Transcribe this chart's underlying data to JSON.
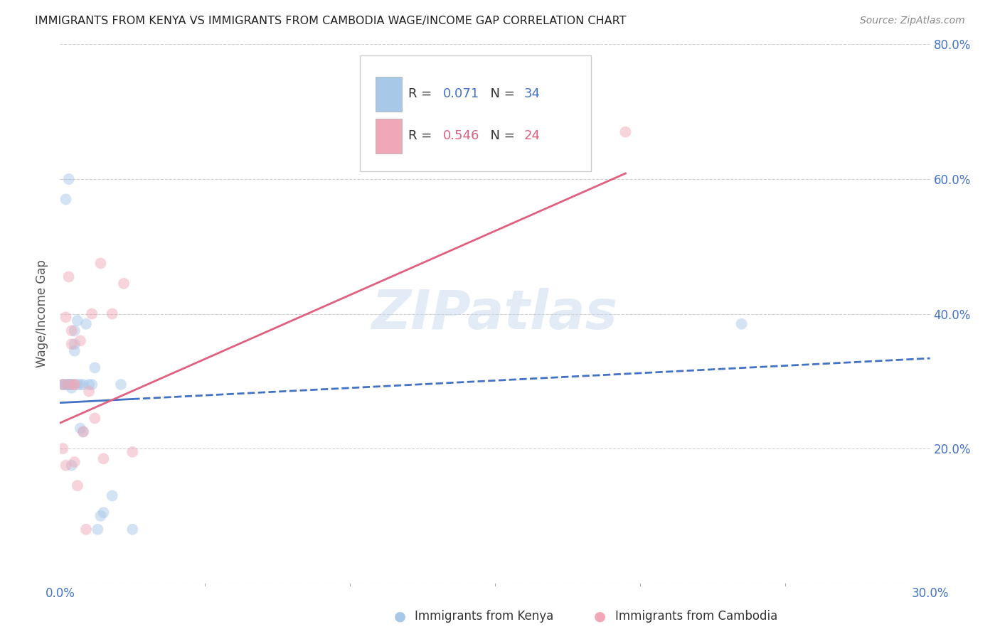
{
  "title": "IMMIGRANTS FROM KENYA VS IMMIGRANTS FROM CAMBODIA WAGE/INCOME GAP CORRELATION CHART",
  "source": "Source: ZipAtlas.com",
  "ylabel": "Wage/Income Gap",
  "xlim": [
    0.0,
    0.3
  ],
  "ylim": [
    0.0,
    0.8
  ],
  "xticks": [
    0.0,
    0.05,
    0.1,
    0.15,
    0.2,
    0.25,
    0.3
  ],
  "xticklabels": [
    "0.0%",
    "",
    "",
    "",
    "",
    "",
    "30.0%"
  ],
  "yticks": [
    0.0,
    0.2,
    0.4,
    0.6,
    0.8
  ],
  "right_yticklabels": [
    "",
    "20.0%",
    "40.0%",
    "60.0%",
    "80.0%"
  ],
  "background_color": "#ffffff",
  "grid_color": "#d0d0d0",
  "watermark": "ZIPatlas",
  "legend_R1": "R = 0.071",
  "legend_N1": "N = 34",
  "legend_R2": "R = 0.546",
  "legend_N2": "N = 24",
  "kenya_x": [
    0.001,
    0.001,
    0.002,
    0.002,
    0.002,
    0.003,
    0.003,
    0.003,
    0.003,
    0.004,
    0.004,
    0.004,
    0.004,
    0.004,
    0.005,
    0.005,
    0.005,
    0.006,
    0.006,
    0.007,
    0.007,
    0.008,
    0.008,
    0.009,
    0.01,
    0.011,
    0.012,
    0.013,
    0.014,
    0.015,
    0.018,
    0.021,
    0.025,
    0.235
  ],
  "kenya_y": [
    0.295,
    0.295,
    0.295,
    0.295,
    0.57,
    0.6,
    0.295,
    0.295,
    0.295,
    0.175,
    0.295,
    0.295,
    0.295,
    0.29,
    0.375,
    0.355,
    0.345,
    0.295,
    0.39,
    0.295,
    0.23,
    0.225,
    0.295,
    0.385,
    0.295,
    0.295,
    0.32,
    0.08,
    0.1,
    0.105,
    0.13,
    0.295,
    0.08,
    0.385
  ],
  "cambodia_x": [
    0.001,
    0.001,
    0.002,
    0.002,
    0.003,
    0.003,
    0.004,
    0.004,
    0.005,
    0.005,
    0.005,
    0.006,
    0.007,
    0.008,
    0.009,
    0.01,
    0.011,
    0.012,
    0.014,
    0.015,
    0.018,
    0.022,
    0.025,
    0.195
  ],
  "cambodia_y": [
    0.295,
    0.2,
    0.395,
    0.175,
    0.455,
    0.295,
    0.375,
    0.355,
    0.295,
    0.18,
    0.295,
    0.145,
    0.36,
    0.225,
    0.08,
    0.285,
    0.4,
    0.245,
    0.475,
    0.185,
    0.4,
    0.445,
    0.195,
    0.67
  ],
  "kenya_color": "#a8c8e8",
  "cambodia_color": "#f0a8b8",
  "kenya_trend_color": "#4472c4",
  "cambodia_trend_color": "#e06080",
  "kenya_trend_intercept": 0.268,
  "kenya_trend_slope": 0.22,
  "cambodia_trend_intercept": 0.238,
  "cambodia_trend_slope": 1.9,
  "dot_size": 130,
  "dot_alpha": 0.5
}
